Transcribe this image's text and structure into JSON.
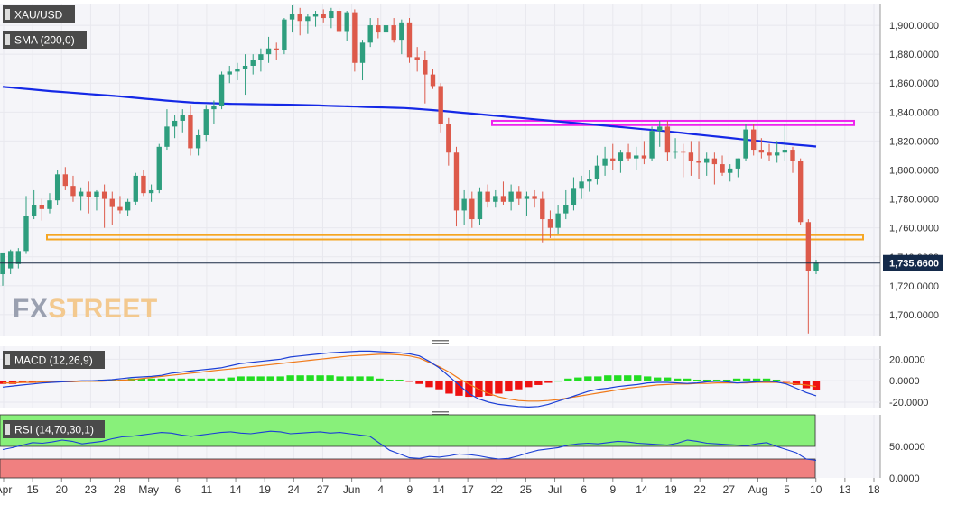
{
  "symbol": "XAU/USD",
  "sma_label": "SMA (200,0)",
  "macd_label": "MACD (12,26,9)",
  "rsi_label": "RSI (14,70,30,1)",
  "watermark": {
    "fx": "FX",
    "street": "STREET"
  },
  "colors": {
    "up": "#2e9e7e",
    "down": "#dd5a4b",
    "sma": "#1428e6",
    "resistance": "#ee22ee",
    "support": "#f5a623",
    "macd_line": "#1c3fd6",
    "signal_line": "#f07a1a",
    "hist_up": "#22dd22",
    "hist_down": "#ee1111",
    "rsi_line": "#1c3fd6",
    "rsi_overbought": "#88f07a",
    "rsi_oversold": "#f08080",
    "price_label_bg": "#142a4a",
    "grid": "#e8e8ee"
  },
  "chart_data": [
    {
      "type": "candlestick",
      "title": "XAU/USD",
      "ylim": [
        1685,
        1915
      ],
      "y_ticks": [
        "1,700.0000",
        "1,720.0000",
        "1,740.0000",
        "1,760.0000",
        "1,780.0000",
        "1,800.0000",
        "1,820.0000",
        "1,840.0000",
        "1,860.0000",
        "1,880.0000",
        "1,900.0000"
      ],
      "x_ticks": [
        "Apr",
        "15",
        "20",
        "23",
        "28",
        "May",
        "6",
        "11",
        "14",
        "19",
        "24",
        "27",
        "Jun",
        "4",
        "9",
        "14",
        "17",
        "22",
        "25",
        "Jul",
        "6",
        "9",
        "14",
        "19",
        "22",
        "27",
        "Aug",
        "5",
        "10",
        "13",
        "18"
      ],
      "last_price_label": "1,735.6600",
      "last_price": 1735.66,
      "support_zone": [
        1752,
        1755
      ],
      "resistance_zone": [
        1831,
        1834
      ],
      "sma_label": "SMA (200,0)",
      "sma": [
        1857.5,
        1856.9,
        1856.3,
        1855.7,
        1855.1,
        1854.5,
        1854.0,
        1853.5,
        1853.0,
        1852.5,
        1852.0,
        1851.5,
        1851.0,
        1850.4,
        1849.8,
        1849.2,
        1848.6,
        1848.0,
        1847.5,
        1847.0,
        1846.5,
        1846.3,
        1846.1,
        1845.9,
        1845.7,
        1845.6,
        1845.5,
        1845.4,
        1845.3,
        1845.2,
        1845.1,
        1845.0,
        1844.8,
        1844.6,
        1844.4,
        1844.2,
        1844.0,
        1843.8,
        1843.6,
        1843.4,
        1843.2,
        1843.0,
        1842.8,
        1842.4,
        1841.9,
        1841.4,
        1840.8,
        1840.2,
        1839.6,
        1839.0,
        1838.4,
        1837.8,
        1837.2,
        1836.6,
        1836.0,
        1835.4,
        1834.8,
        1834.2,
        1833.6,
        1833.0,
        1832.4,
        1831.8,
        1831.2,
        1830.6,
        1830.0,
        1829.4,
        1828.8,
        1828.2,
        1827.6,
        1827.0,
        1826.3,
        1825.6,
        1824.9,
        1824.2,
        1823.5,
        1822.8,
        1822.1,
        1821.4,
        1820.7,
        1820.0,
        1819.3,
        1818.6,
        1818.0,
        1817.4,
        1816.8,
        1816.2
      ],
      "candles": [
        {
          "o": 1728,
          "h": 1742,
          "l": 1720,
          "c": 1743
        },
        {
          "o": 1732,
          "h": 1745,
          "l": 1728,
          "c": 1744
        },
        {
          "o": 1735,
          "h": 1746,
          "l": 1732,
          "c": 1744
        },
        {
          "o": 1744,
          "h": 1782,
          "l": 1742,
          "c": 1768
        },
        {
          "o": 1768,
          "h": 1786,
          "l": 1766,
          "c": 1776
        },
        {
          "o": 1776,
          "h": 1780,
          "l": 1765,
          "c": 1773
        },
        {
          "o": 1773,
          "h": 1784,
          "l": 1770,
          "c": 1779
        },
        {
          "o": 1779,
          "h": 1800,
          "l": 1776,
          "c": 1797
        },
        {
          "o": 1797,
          "h": 1802,
          "l": 1786,
          "c": 1789
        },
        {
          "o": 1789,
          "h": 1796,
          "l": 1778,
          "c": 1782
        },
        {
          "o": 1782,
          "h": 1788,
          "l": 1772,
          "c": 1785
        },
        {
          "o": 1785,
          "h": 1792,
          "l": 1770,
          "c": 1781
        },
        {
          "o": 1781,
          "h": 1786,
          "l": 1772,
          "c": 1785
        },
        {
          "o": 1785,
          "h": 1790,
          "l": 1760,
          "c": 1780
        },
        {
          "o": 1780,
          "h": 1785,
          "l": 1762,
          "c": 1775
        },
        {
          "o": 1775,
          "h": 1782,
          "l": 1770,
          "c": 1772
        },
        {
          "o": 1772,
          "h": 1780,
          "l": 1768,
          "c": 1778
        },
        {
          "o": 1778,
          "h": 1798,
          "l": 1776,
          "c": 1796
        },
        {
          "o": 1796,
          "h": 1800,
          "l": 1782,
          "c": 1784
        },
        {
          "o": 1784,
          "h": 1790,
          "l": 1778,
          "c": 1786
        },
        {
          "o": 1786,
          "h": 1818,
          "l": 1784,
          "c": 1816
        },
        {
          "o": 1816,
          "h": 1842,
          "l": 1814,
          "c": 1830
        },
        {
          "o": 1830,
          "h": 1838,
          "l": 1822,
          "c": 1834
        },
        {
          "o": 1834,
          "h": 1842,
          "l": 1826,
          "c": 1838
        },
        {
          "o": 1838,
          "h": 1845,
          "l": 1810,
          "c": 1815
        },
        {
          "o": 1815,
          "h": 1828,
          "l": 1810,
          "c": 1824
        },
        {
          "o": 1824,
          "h": 1845,
          "l": 1820,
          "c": 1842
        },
        {
          "o": 1842,
          "h": 1848,
          "l": 1832,
          "c": 1844
        },
        {
          "o": 1844,
          "h": 1868,
          "l": 1842,
          "c": 1866
        },
        {
          "o": 1866,
          "h": 1872,
          "l": 1860,
          "c": 1868
        },
        {
          "o": 1868,
          "h": 1874,
          "l": 1862,
          "c": 1870
        },
        {
          "o": 1870,
          "h": 1880,
          "l": 1852,
          "c": 1872
        },
        {
          "o": 1872,
          "h": 1880,
          "l": 1866,
          "c": 1876
        },
        {
          "o": 1876,
          "h": 1884,
          "l": 1868,
          "c": 1880
        },
        {
          "o": 1880,
          "h": 1892,
          "l": 1874,
          "c": 1884
        },
        {
          "o": 1884,
          "h": 1888,
          "l": 1876,
          "c": 1883
        },
        {
          "o": 1883,
          "h": 1905,
          "l": 1880,
          "c": 1904
        },
        {
          "o": 1904,
          "h": 1914,
          "l": 1895,
          "c": 1908
        },
        {
          "o": 1908,
          "h": 1912,
          "l": 1893,
          "c": 1903
        },
        {
          "o": 1903,
          "h": 1908,
          "l": 1894,
          "c": 1906
        },
        {
          "o": 1906,
          "h": 1910,
          "l": 1899,
          "c": 1908
        },
        {
          "o": 1908,
          "h": 1911,
          "l": 1902,
          "c": 1905
        },
        {
          "o": 1905,
          "h": 1912,
          "l": 1898,
          "c": 1910
        },
        {
          "o": 1910,
          "h": 1912,
          "l": 1894,
          "c": 1896
        },
        {
          "o": 1896,
          "h": 1910,
          "l": 1889,
          "c": 1909
        },
        {
          "o": 1909,
          "h": 1911,
          "l": 1868,
          "c": 1874
        },
        {
          "o": 1874,
          "h": 1890,
          "l": 1862,
          "c": 1888
        },
        {
          "o": 1888,
          "h": 1905,
          "l": 1885,
          "c": 1900
        },
        {
          "o": 1900,
          "h": 1905,
          "l": 1891,
          "c": 1895
        },
        {
          "o": 1895,
          "h": 1905,
          "l": 1888,
          "c": 1900
        },
        {
          "o": 1900,
          "h": 1905,
          "l": 1888,
          "c": 1890
        },
        {
          "o": 1890,
          "h": 1904,
          "l": 1880,
          "c": 1902
        },
        {
          "o": 1902,
          "h": 1905,
          "l": 1874,
          "c": 1878
        },
        {
          "o": 1878,
          "h": 1885,
          "l": 1868,
          "c": 1876
        },
        {
          "o": 1876,
          "h": 1882,
          "l": 1846,
          "c": 1866
        },
        {
          "o": 1866,
          "h": 1870,
          "l": 1856,
          "c": 1858
        },
        {
          "o": 1858,
          "h": 1860,
          "l": 1826,
          "c": 1832
        },
        {
          "o": 1832,
          "h": 1836,
          "l": 1803,
          "c": 1812
        },
        {
          "o": 1812,
          "h": 1816,
          "l": 1761,
          "c": 1772
        },
        {
          "o": 1772,
          "h": 1786,
          "l": 1762,
          "c": 1780
        },
        {
          "o": 1780,
          "h": 1785,
          "l": 1760,
          "c": 1766
        },
        {
          "o": 1766,
          "h": 1788,
          "l": 1762,
          "c": 1785
        },
        {
          "o": 1785,
          "h": 1790,
          "l": 1774,
          "c": 1778
        },
        {
          "o": 1778,
          "h": 1786,
          "l": 1774,
          "c": 1782
        },
        {
          "o": 1782,
          "h": 1792,
          "l": 1776,
          "c": 1778
        },
        {
          "o": 1778,
          "h": 1790,
          "l": 1772,
          "c": 1785
        },
        {
          "o": 1785,
          "h": 1789,
          "l": 1776,
          "c": 1780
        },
        {
          "o": 1780,
          "h": 1785,
          "l": 1768,
          "c": 1782
        },
        {
          "o": 1782,
          "h": 1786,
          "l": 1774,
          "c": 1780
        },
        {
          "o": 1780,
          "h": 1785,
          "l": 1750,
          "c": 1766
        },
        {
          "o": 1766,
          "h": 1772,
          "l": 1753,
          "c": 1760
        },
        {
          "o": 1760,
          "h": 1776,
          "l": 1756,
          "c": 1770
        },
        {
          "o": 1770,
          "h": 1786,
          "l": 1766,
          "c": 1776
        },
        {
          "o": 1776,
          "h": 1795,
          "l": 1772,
          "c": 1787
        },
        {
          "o": 1787,
          "h": 1796,
          "l": 1780,
          "c": 1792
        },
        {
          "o": 1792,
          "h": 1800,
          "l": 1785,
          "c": 1794
        },
        {
          "o": 1794,
          "h": 1810,
          "l": 1790,
          "c": 1803
        },
        {
          "o": 1803,
          "h": 1816,
          "l": 1796,
          "c": 1808
        },
        {
          "o": 1808,
          "h": 1818,
          "l": 1800,
          "c": 1806
        },
        {
          "o": 1806,
          "h": 1814,
          "l": 1798,
          "c": 1812
        },
        {
          "o": 1812,
          "h": 1818,
          "l": 1806,
          "c": 1808
        },
        {
          "o": 1808,
          "h": 1816,
          "l": 1800,
          "c": 1810
        },
        {
          "o": 1810,
          "h": 1820,
          "l": 1804,
          "c": 1808
        },
        {
          "o": 1808,
          "h": 1830,
          "l": 1806,
          "c": 1827
        },
        {
          "o": 1827,
          "h": 1834,
          "l": 1816,
          "c": 1830
        },
        {
          "o": 1830,
          "h": 1834,
          "l": 1806,
          "c": 1812
        },
        {
          "o": 1812,
          "h": 1822,
          "l": 1808,
          "c": 1813
        },
        {
          "o": 1813,
          "h": 1818,
          "l": 1795,
          "c": 1812
        },
        {
          "o": 1812,
          "h": 1820,
          "l": 1796,
          "c": 1806
        },
        {
          "o": 1806,
          "h": 1820,
          "l": 1794,
          "c": 1805
        },
        {
          "o": 1805,
          "h": 1812,
          "l": 1796,
          "c": 1808
        },
        {
          "o": 1808,
          "h": 1812,
          "l": 1790,
          "c": 1804
        },
        {
          "o": 1804,
          "h": 1810,
          "l": 1796,
          "c": 1798
        },
        {
          "o": 1798,
          "h": 1804,
          "l": 1792,
          "c": 1801
        },
        {
          "o": 1801,
          "h": 1808,
          "l": 1795,
          "c": 1808
        },
        {
          "o": 1808,
          "h": 1832,
          "l": 1806,
          "c": 1828
        },
        {
          "o": 1828,
          "h": 1832,
          "l": 1810,
          "c": 1814
        },
        {
          "o": 1814,
          "h": 1822,
          "l": 1808,
          "c": 1812
        },
        {
          "o": 1812,
          "h": 1818,
          "l": 1806,
          "c": 1810
        },
        {
          "o": 1810,
          "h": 1820,
          "l": 1805,
          "c": 1812
        },
        {
          "o": 1812,
          "h": 1832,
          "l": 1806,
          "c": 1814
        },
        {
          "o": 1814,
          "h": 1816,
          "l": 1798,
          "c": 1806
        },
        {
          "o": 1806,
          "h": 1808,
          "l": 1762,
          "c": 1764
        },
        {
          "o": 1764,
          "h": 1766,
          "l": 1687,
          "c": 1730
        },
        {
          "o": 1730,
          "h": 1738,
          "l": 1728,
          "c": 1736
        }
      ]
    },
    {
      "type": "line",
      "title": "MACD (12,26,9)",
      "ylim": [
        -25,
        32
      ],
      "y_ticks": [
        "-20.0000",
        "0.0000",
        "20.0000"
      ],
      "series": [
        {
          "name": "MACD",
          "values": [
            -6,
            -5,
            -4,
            -3,
            -2,
            -1.5,
            -1,
            -0.5,
            0,
            0,
            0.5,
            1,
            2,
            3,
            3.5,
            4,
            5,
            7,
            8,
            9,
            10,
            11,
            12,
            14,
            16,
            17,
            18,
            19,
            20,
            22,
            23,
            24,
            25,
            26,
            26.5,
            27,
            27.5,
            27.5,
            27,
            26.5,
            26,
            25,
            23,
            18,
            12,
            4,
            -4,
            -12,
            -17,
            -20,
            -22,
            -23,
            -24,
            -24.5,
            -24,
            -22,
            -19,
            -16,
            -13,
            -10,
            -8,
            -7,
            -5.5,
            -4.5,
            -3.5,
            -2,
            -1.5,
            -1.5,
            -2,
            -2.5,
            -2,
            -1,
            -0.5,
            -1,
            -2,
            -1.5,
            -1,
            -0.5,
            -1,
            -3,
            -7,
            -11,
            -14
          ]
        },
        {
          "name": "Signal",
          "values": [
            -2,
            -2,
            -1.5,
            -1.5,
            -1,
            -1,
            -1,
            -1,
            -0.5,
            -0.5,
            -0.5,
            0,
            0.5,
            1,
            2,
            3,
            4,
            5,
            6,
            7,
            8,
            9,
            10,
            11,
            12,
            13,
            14,
            15,
            16,
            17,
            18,
            19,
            20,
            21,
            22,
            23,
            23.5,
            24,
            24.5,
            24.5,
            24,
            23,
            21,
            17,
            13,
            8,
            2,
            -3,
            -8,
            -12,
            -15,
            -17,
            -18.5,
            -19,
            -19,
            -18.5,
            -17.5,
            -16,
            -14.5,
            -13,
            -11.5,
            -10,
            -8.5,
            -7,
            -6,
            -5,
            -4,
            -3.5,
            -3,
            -3,
            -2.5,
            -2.5,
            -2,
            -2,
            -2,
            -2,
            -1.5,
            -1.5,
            -1.5,
            -2,
            -3,
            -4,
            -5.5
          ]
        }
      ],
      "histogram": [
        -3,
        -3,
        -2,
        -2,
        -1,
        -1,
        0,
        0,
        0,
        0,
        1,
        1,
        1,
        2,
        2,
        2,
        2,
        2,
        2,
        2,
        2,
        2,
        2,
        3,
        4,
        4,
        4,
        4,
        4,
        5,
        5,
        5,
        5,
        5,
        4,
        4,
        4,
        4,
        2,
        1,
        1,
        -1,
        -3,
        -6,
        -8,
        -12,
        -14,
        -15,
        -15,
        -14,
        -12,
        -10,
        -8,
        -6,
        -4,
        -2,
        0,
        2,
        3,
        4,
        4,
        5,
        5,
        5,
        5,
        4,
        3,
        3,
        2,
        2,
        1,
        1,
        1,
        1,
        2,
        2,
        2,
        2,
        1,
        -1,
        -4,
        -7,
        -9
      ]
    },
    {
      "type": "line",
      "title": "RSI (14,70,30,1)",
      "ylim": [
        0,
        100
      ],
      "y_ticks": [
        "0.0000",
        "50.0000"
      ],
      "overbought": 70,
      "oversold": 30,
      "series": [
        {
          "name": "RSI",
          "values": [
            45,
            48,
            52,
            56,
            55,
            57,
            60,
            58,
            54,
            56,
            58,
            62,
            65,
            66,
            68,
            70,
            72,
            71,
            68,
            66,
            68,
            70,
            72,
            73,
            71,
            70,
            72,
            74,
            73,
            70,
            71,
            72,
            73,
            71,
            72,
            70,
            68,
            66,
            55,
            44,
            38,
            32,
            31,
            34,
            33,
            35,
            38,
            37,
            35,
            32,
            30,
            31,
            35,
            40,
            44,
            46,
            48,
            52,
            54,
            55,
            54,
            56,
            58,
            57,
            55,
            54,
            53,
            52,
            55,
            60,
            58,
            55,
            54,
            53,
            52,
            51,
            54,
            56,
            50,
            45,
            40,
            30,
            28
          ]
        }
      ]
    }
  ]
}
